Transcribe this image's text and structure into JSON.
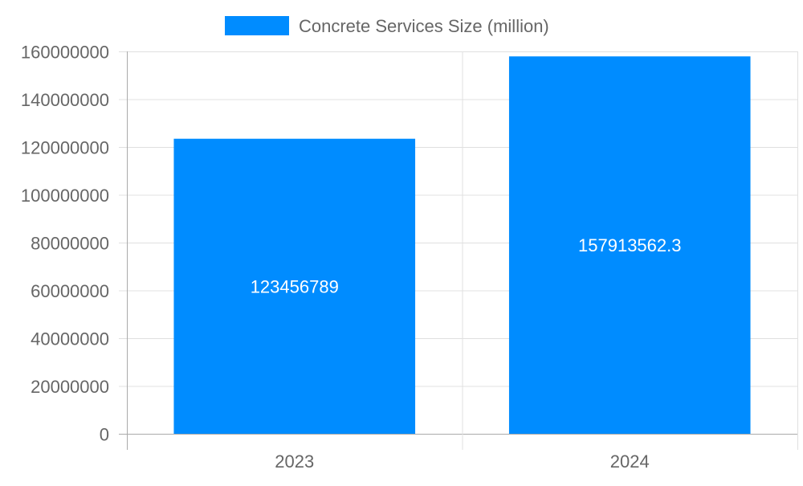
{
  "chart_data": {
    "type": "bar",
    "title": "",
    "xlabel": "",
    "ylabel": "",
    "categories": [
      "2023",
      "2024"
    ],
    "series": [
      {
        "name": "Concrete Services Size (million)",
        "values": [
          123456789,
          157913562.3
        ],
        "color": "#008CFF"
      }
    ],
    "data_labels": [
      "123456789",
      "157913562.3"
    ],
    "ylim": [
      0,
      160000000
    ],
    "yticks": [
      "0",
      "20000000",
      "40000000",
      "60000000",
      "80000000",
      "100000000",
      "120000000",
      "140000000",
      "160000000"
    ],
    "grid": true,
    "legend_position": "top"
  }
}
